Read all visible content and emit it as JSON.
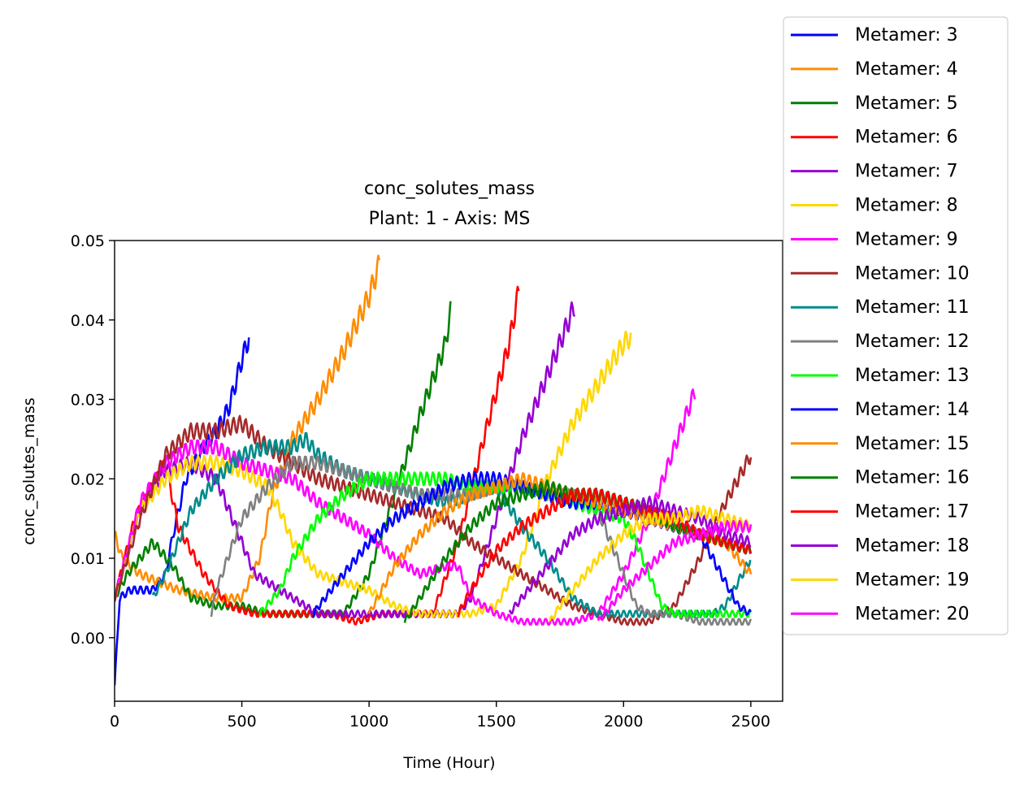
{
  "chart_data": {
    "type": "line",
    "title": "conc_solutes_mass",
    "subtitle": "Plant: 1 - Axis: MS",
    "xlabel": "Time (Hour)",
    "ylabel": "conc_solutes_mass",
    "xlim": [
      0,
      2625
    ],
    "ylim": [
      -0.008,
      0.05
    ],
    "xticks": [
      0,
      500,
      1000,
      1500,
      2000,
      2500
    ],
    "xtick_labels": [
      "0",
      "500",
      "1000",
      "1500",
      "2000",
      "2500"
    ],
    "yticks": [
      0.0,
      0.01,
      0.02,
      0.03,
      0.04,
      0.05
    ],
    "ytick_labels": [
      "0.00",
      "0.01",
      "0.02",
      "0.03",
      "0.04",
      "0.05"
    ],
    "grid": false,
    "legend_position": "outside-right",
    "oscillation_period_hours": 24,
    "series": [
      {
        "name": "Metamer: 3",
        "color": "#0000ff",
        "x": [
          0,
          20,
          60,
          150,
          200,
          230,
          280,
          350,
          400,
          450,
          500,
          530
        ],
        "y": [
          -0.006,
          0.005,
          0.006,
          0.006,
          0.008,
          0.013,
          0.02,
          0.024,
          0.026,
          0.029,
          0.035,
          0.038
        ]
      },
      {
        "name": "Metamer: 4",
        "color": "#ff8c00",
        "x": [
          0,
          30,
          100,
          250,
          400,
          500,
          570,
          620,
          700,
          800,
          900,
          1000,
          1040
        ],
        "y": [
          0.013,
          0.01,
          0.008,
          0.006,
          0.005,
          0.005,
          0.01,
          0.018,
          0.025,
          0.03,
          0.036,
          0.043,
          0.047
        ]
      },
      {
        "name": "Metamer: 5",
        "color": "#008000",
        "x": [
          0,
          50,
          150,
          230,
          300,
          400,
          500,
          600,
          700,
          800,
          900,
          1000,
          1100,
          1200,
          1300,
          1320
        ],
        "y": [
          0.005,
          0.008,
          0.012,
          0.009,
          0.005,
          0.004,
          0.004,
          0.003,
          0.003,
          0.003,
          0.003,
          0.008,
          0.018,
          0.028,
          0.037,
          0.041
        ]
      },
      {
        "name": "Metamer: 6",
        "color": "#ff0000",
        "x": [
          0,
          80,
          200,
          250,
          350,
          450,
          550,
          650,
          750,
          850,
          950,
          1050,
          1150,
          1250,
          1350,
          1450,
          1550,
          1590
        ],
        "y": [
          0.005,
          0.015,
          0.022,
          0.014,
          0.008,
          0.004,
          0.003,
          0.003,
          0.003,
          0.003,
          0.002,
          0.003,
          0.003,
          0.003,
          0.012,
          0.025,
          0.037,
          0.044
        ]
      },
      {
        "name": "Metamer: 7",
        "color": "#9400d3",
        "x": [
          0,
          100,
          200,
          300,
          350,
          400,
          450,
          500,
          550,
          600,
          700,
          800,
          900,
          1000,
          1100,
          1200,
          1300,
          1350,
          1400,
          1500,
          1600,
          1700,
          1810
        ],
        "y": [
          0.005,
          0.016,
          0.021,
          0.022,
          0.021,
          0.02,
          0.016,
          0.012,
          0.008,
          0.007,
          0.005,
          0.003,
          0.003,
          0.003,
          0.003,
          0.003,
          0.003,
          0.003,
          0.005,
          0.015,
          0.025,
          0.033,
          0.042
        ]
      },
      {
        "name": "Metamer: 8",
        "color": "#ffd700",
        "x": [
          0,
          100,
          200,
          300,
          400,
          500,
          600,
          650,
          700,
          800,
          900,
          1000,
          1100,
          1200,
          1300,
          1400,
          1500,
          1600,
          1700,
          1800,
          1900,
          2000,
          2030
        ],
        "y": [
          0.005,
          0.016,
          0.02,
          0.022,
          0.022,
          0.021,
          0.019,
          0.016,
          0.012,
          0.008,
          0.007,
          0.006,
          0.004,
          0.003,
          0.003,
          0.003,
          0.004,
          0.01,
          0.02,
          0.027,
          0.032,
          0.037,
          0.038
        ]
      },
      {
        "name": "Metamer: 9",
        "color": "#ff00ff",
        "x": [
          0,
          100,
          200,
          300,
          400,
          500,
          600,
          700,
          800,
          900,
          1000,
          1100,
          1200,
          1300,
          1350,
          1400,
          1500,
          1600,
          1700,
          1800,
          1900,
          2000,
          2100,
          2200,
          2280
        ],
        "y": [
          0.005,
          0.017,
          0.022,
          0.024,
          0.024,
          0.022,
          0.021,
          0.02,
          0.017,
          0.015,
          0.013,
          0.01,
          0.008,
          0.009,
          0.009,
          0.005,
          0.003,
          0.002,
          0.002,
          0.002,
          0.003,
          0.008,
          0.015,
          0.024,
          0.031
        ]
      },
      {
        "name": "Metamer: 10",
        "color": "#a52a2a",
        "x": [
          0,
          100,
          200,
          300,
          400,
          500,
          600,
          700,
          800,
          900,
          1000,
          1100,
          1200,
          1300,
          1400,
          1500,
          1600,
          1700,
          1800,
          1900,
          2000,
          2100,
          2200,
          2300,
          2400,
          2500
        ],
        "y": [
          0.005,
          0.015,
          0.023,
          0.026,
          0.026,
          0.027,
          0.024,
          0.022,
          0.02,
          0.019,
          0.018,
          0.017,
          0.016,
          0.015,
          0.012,
          0.01,
          0.008,
          0.006,
          0.004,
          0.003,
          0.002,
          0.002,
          0.004,
          0.01,
          0.017,
          0.023
        ]
      },
      {
        "name": "Metamer: 11",
        "color": "#008b8b",
        "x": [
          150,
          200,
          250,
          300,
          400,
          500,
          600,
          700,
          750,
          800,
          900,
          1000,
          1100,
          1200,
          1300,
          1400,
          1500,
          1600,
          1700,
          1800,
          1900,
          2000,
          2100,
          2200,
          2300,
          2350,
          2400,
          2450,
          2500
        ],
        "y": [
          0.005,
          0.008,
          0.012,
          0.016,
          0.02,
          0.023,
          0.024,
          0.024,
          0.025,
          0.023,
          0.021,
          0.02,
          0.019,
          0.018,
          0.017,
          0.018,
          0.019,
          0.014,
          0.01,
          0.005,
          0.003,
          0.003,
          0.003,
          0.003,
          0.003,
          0.003,
          0.004,
          0.007,
          0.01
        ]
      },
      {
        "name": "Metamer: 12",
        "color": "#808080",
        "x": [
          380,
          400,
          500,
          600,
          700,
          800,
          900,
          1000,
          1100,
          1200,
          1300,
          1400,
          1500,
          1600,
          1700,
          1800,
          1900,
          1950,
          2000,
          2050,
          2100,
          2200,
          2300,
          2400,
          2500
        ],
        "y": [
          0.003,
          0.006,
          0.015,
          0.019,
          0.022,
          0.022,
          0.021,
          0.02,
          0.019,
          0.018,
          0.018,
          0.018,
          0.019,
          0.019,
          0.018,
          0.018,
          0.016,
          0.012,
          0.008,
          0.004,
          0.003,
          0.003,
          0.002,
          0.002,
          0.002
        ]
      },
      {
        "name": "Metamer: 13",
        "color": "#00ff00",
        "x": [
          570,
          650,
          700,
          800,
          900,
          1000,
          1100,
          1200,
          1300,
          1400,
          1500,
          1600,
          1700,
          1800,
          1900,
          2000,
          2050,
          2100,
          2150,
          2200,
          2300,
          2400,
          2500
        ],
        "y": [
          0.003,
          0.006,
          0.01,
          0.015,
          0.018,
          0.02,
          0.02,
          0.02,
          0.02,
          0.019,
          0.019,
          0.019,
          0.018,
          0.017,
          0.016,
          0.015,
          0.012,
          0.008,
          0.004,
          0.003,
          0.003,
          0.003,
          0.003
        ]
      },
      {
        "name": "Metamer: 14",
        "color": "#0000ff",
        "x": [
          780,
          850,
          900,
          1000,
          1100,
          1200,
          1300,
          1400,
          1500,
          1600,
          1700,
          1800,
          1900,
          2000,
          2100,
          2200,
          2300,
          2350,
          2400,
          2450,
          2500
        ],
        "y": [
          0.003,
          0.006,
          0.008,
          0.012,
          0.015,
          0.017,
          0.019,
          0.02,
          0.02,
          0.019,
          0.018,
          0.017,
          0.017,
          0.016,
          0.015,
          0.014,
          0.013,
          0.01,
          0.007,
          0.004,
          0.003
        ]
      },
      {
        "name": "Metamer: 15",
        "color": "#ff8c00",
        "x": [
          1000,
          1050,
          1100,
          1200,
          1300,
          1400,
          1500,
          1600,
          1700,
          1800,
          1900,
          2000,
          2100,
          2200,
          2300,
          2400,
          2500
        ],
        "y": [
          0.003,
          0.006,
          0.009,
          0.013,
          0.016,
          0.018,
          0.019,
          0.02,
          0.019,
          0.018,
          0.017,
          0.016,
          0.015,
          0.014,
          0.013,
          0.012,
          0.008
        ]
      },
      {
        "name": "Metamer: 16",
        "color": "#008000",
        "x": [
          1140,
          1200,
          1300,
          1400,
          1500,
          1600,
          1700,
          1800,
          1900,
          2000,
          2100,
          2200,
          2300,
          2400,
          2500
        ],
        "y": [
          0.002,
          0.005,
          0.01,
          0.014,
          0.017,
          0.018,
          0.019,
          0.018,
          0.018,
          0.017,
          0.016,
          0.014,
          0.013,
          0.012,
          0.011
        ]
      },
      {
        "name": "Metamer: 17",
        "color": "#ff0000",
        "x": [
          1350,
          1400,
          1500,
          1600,
          1700,
          1800,
          1900,
          2000,
          2100,
          2200,
          2300,
          2400,
          2500
        ],
        "y": [
          0.003,
          0.006,
          0.011,
          0.014,
          0.016,
          0.018,
          0.018,
          0.017,
          0.016,
          0.015,
          0.013,
          0.012,
          0.011
        ]
      },
      {
        "name": "Metamer: 18",
        "color": "#9400d3",
        "x": [
          1550,
          1600,
          1700,
          1800,
          1900,
          2000,
          2100,
          2200,
          2300,
          2400,
          2500
        ],
        "y": [
          0.003,
          0.005,
          0.009,
          0.013,
          0.015,
          0.016,
          0.017,
          0.016,
          0.015,
          0.013,
          0.012
        ]
      },
      {
        "name": "Metamer: 19",
        "color": "#ffd700",
        "x": [
          1710,
          1750,
          1800,
          1900,
          2000,
          2100,
          2200,
          2300,
          2400,
          2500
        ],
        "y": [
          0.002,
          0.004,
          0.006,
          0.01,
          0.013,
          0.015,
          0.015,
          0.016,
          0.015,
          0.014
        ]
      },
      {
        "name": "Metamer: 20",
        "color": "#ff00ff",
        "x": [
          1900,
          1950,
          2000,
          2100,
          2200,
          2300,
          2400,
          2500
        ],
        "y": [
          0.002,
          0.004,
          0.006,
          0.009,
          0.012,
          0.013,
          0.014,
          0.014
        ]
      }
    ]
  }
}
